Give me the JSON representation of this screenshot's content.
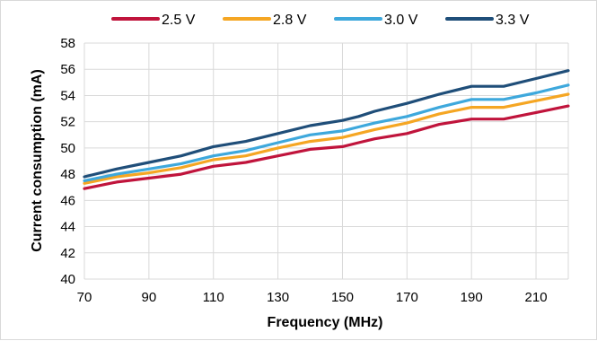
{
  "chart_data": {
    "type": "line",
    "title": "",
    "xlabel": "Frequency (MHz)",
    "ylabel": "Current consumption (mA)",
    "xlim": [
      70,
      220
    ],
    "ylim": [
      40,
      58
    ],
    "xticks": [
      70,
      90,
      110,
      130,
      150,
      170,
      190,
      210
    ],
    "yticks": [
      40,
      42,
      44,
      46,
      48,
      50,
      52,
      54,
      56,
      58
    ],
    "grid": true,
    "legend_position": "top",
    "x": [
      70,
      80,
      90,
      100,
      110,
      120,
      130,
      140,
      150,
      155,
      160,
      170,
      180,
      190,
      200,
      210,
      220
    ],
    "series": [
      {
        "name": "2.5 V",
        "color": "#c0143c",
        "values": [
          46.9,
          47.4,
          47.7,
          48.0,
          48.6,
          48.9,
          49.4,
          49.9,
          50.1,
          50.4,
          50.7,
          51.1,
          51.8,
          52.2,
          52.2,
          52.7,
          53.2
        ]
      },
      {
        "name": "2.8 V",
        "color": "#f5a623",
        "values": [
          47.3,
          47.8,
          48.1,
          48.5,
          49.1,
          49.4,
          50.0,
          50.5,
          50.8,
          51.1,
          51.4,
          51.9,
          52.6,
          53.1,
          53.1,
          53.6,
          54.1
        ]
      },
      {
        "name": "3.0 V",
        "color": "#3ea8dc",
        "values": [
          47.5,
          48.0,
          48.4,
          48.8,
          49.4,
          49.8,
          50.4,
          51.0,
          51.3,
          51.6,
          51.9,
          52.4,
          53.1,
          53.7,
          53.7,
          54.2,
          54.8
        ]
      },
      {
        "name": "3.3 V",
        "color": "#1f4e79",
        "values": [
          47.8,
          48.4,
          48.9,
          49.4,
          50.1,
          50.5,
          51.1,
          51.7,
          52.1,
          52.4,
          52.8,
          53.4,
          54.1,
          54.7,
          54.7,
          55.3,
          55.9
        ]
      }
    ]
  }
}
